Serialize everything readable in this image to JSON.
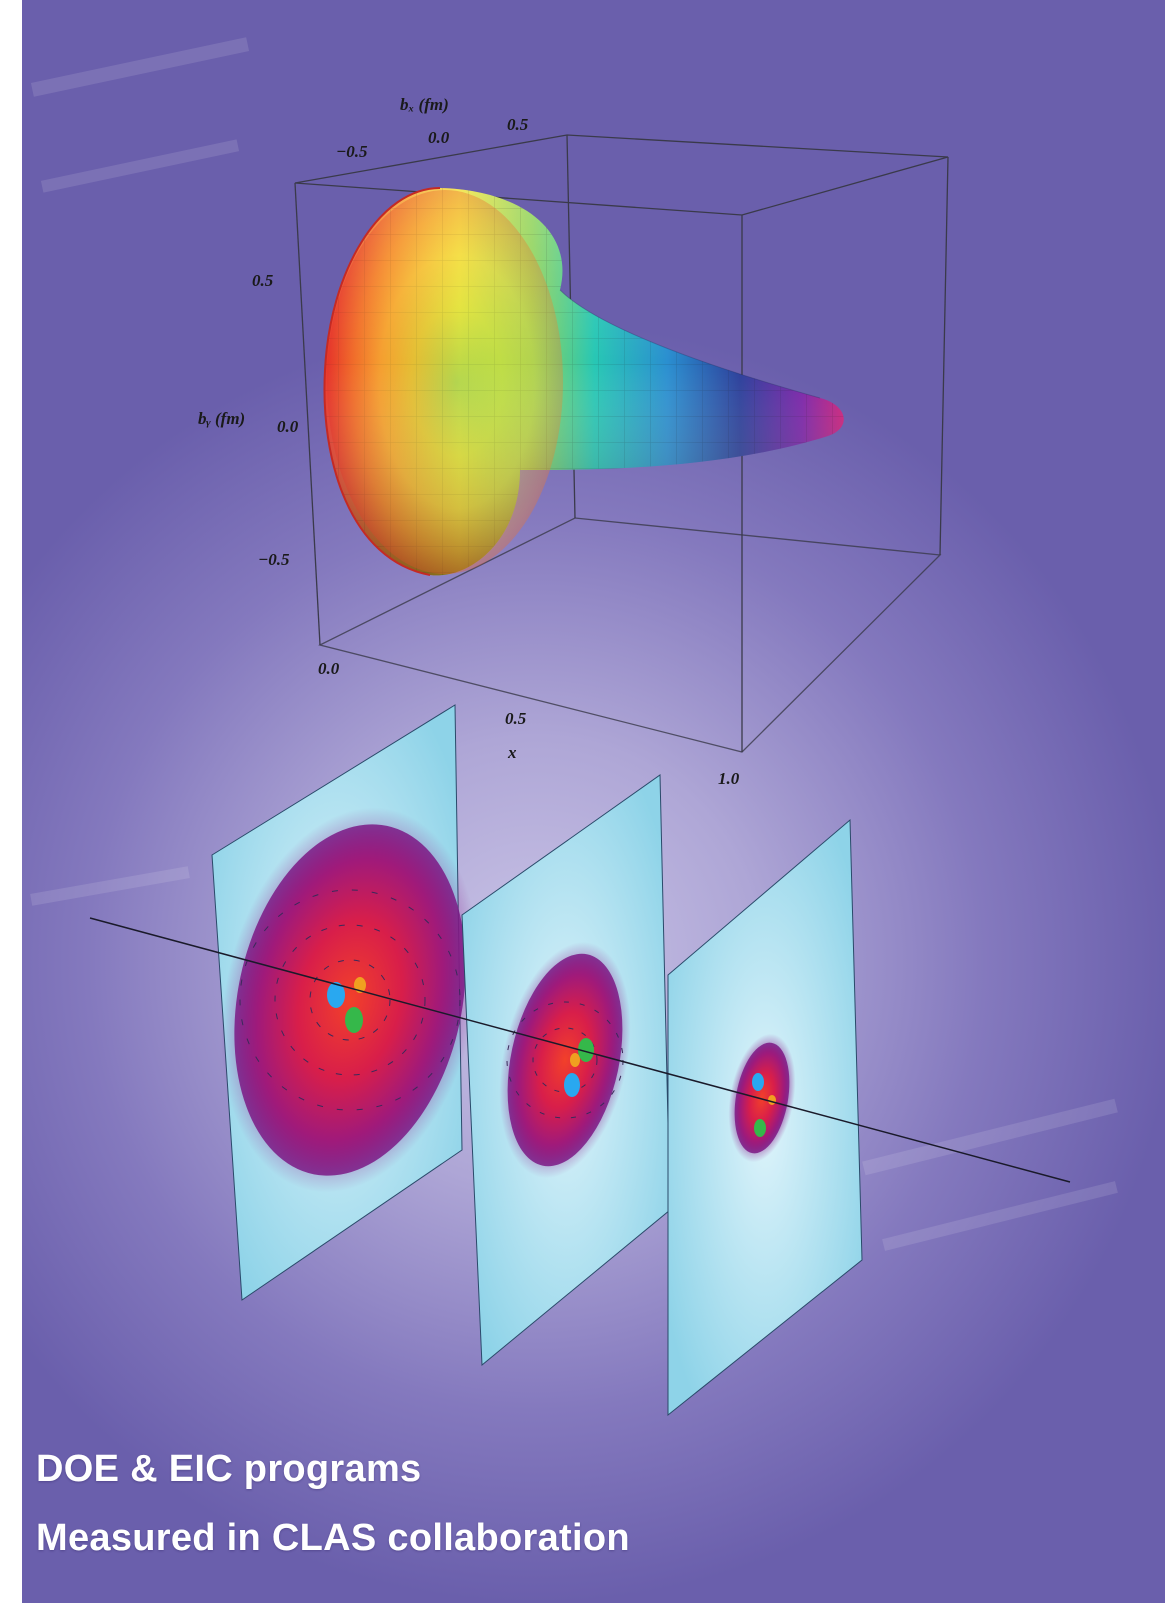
{
  "figure": {
    "axes": {
      "bx_title": "bₓ (fm)",
      "by_title": "bᵧ (fm)",
      "x_title": "x",
      "bx_ticks": [
        "−0.5",
        "0.0",
        "0.5"
      ],
      "by_ticks": [
        "0.5",
        "0.0",
        "−0.5"
      ],
      "x_ticks": [
        "0.0",
        "0.5",
        "1.0"
      ]
    },
    "surface_colormap": [
      "#e8342a",
      "#f58a2a",
      "#f3e33a",
      "#8fd35a",
      "#27c7b4",
      "#2a8fd0",
      "#2a3e9a",
      "#7a22a8",
      "#cc1e7a"
    ],
    "slices": [
      {
        "name": "slice-1",
        "ring_count": 3
      },
      {
        "name": "slice-2",
        "ring_count": 2
      },
      {
        "name": "slice-3",
        "ring_count": 0
      }
    ],
    "quark_colors": [
      "#29a8f0",
      "#35b84a",
      "#f0a020"
    ]
  },
  "caption": {
    "line1": "DOE & EIC programs",
    "line2": "Measured in CLAS collaboration"
  }
}
